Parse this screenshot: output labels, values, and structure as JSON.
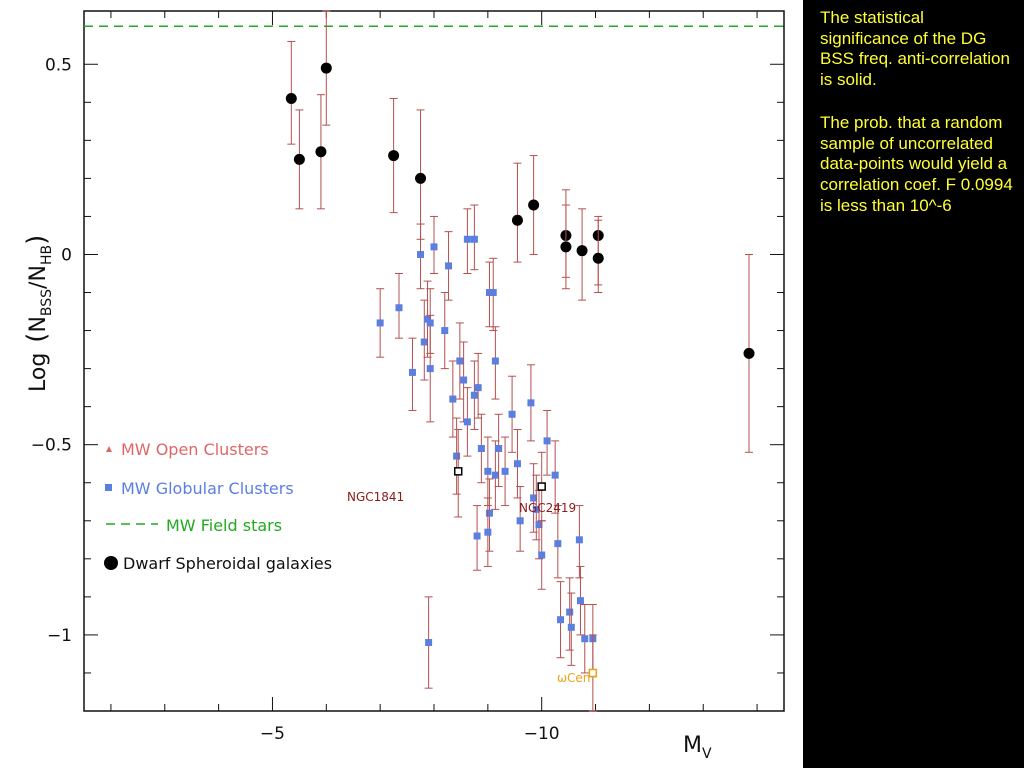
{
  "chart_data": {
    "type": "scatter",
    "title": "",
    "xlabel": "M",
    "xlabel_sub": "V",
    "ylabel": {
      "prefix": "Log",
      "num": "N",
      "num_sub": "BSS",
      "den": "N",
      "den_sub": "HB"
    },
    "xlim": [
      -1.5,
      -14.5
    ],
    "ylim": [
      -1.2,
      0.64
    ],
    "x_ticks": [
      {
        "value": -5,
        "label": "−5"
      },
      {
        "value": -10,
        "label": "−10"
      }
    ],
    "y_ticks": [
      {
        "value": 0.5,
        "label": "0.5"
      },
      {
        "value": 0,
        "label": "0"
      },
      {
        "value": -0.5,
        "label": "−0.5"
      },
      {
        "value": -1,
        "label": "−1"
      }
    ],
    "legend_position": "left-bottom",
    "legend": [
      {
        "label": "MW Open Clusters",
        "color": "#e06666",
        "marker": "triangle"
      },
      {
        "label": "MW Globular Clusters",
        "color": "#5b7fe0",
        "marker": "square"
      },
      {
        "label": "MW Field stars",
        "color": "#22aa22",
        "marker": "dashed-line"
      },
      {
        "label": "Dwarf Spheroidal galaxies",
        "color": "#000000",
        "marker": "circle"
      }
    ],
    "field_stars_level": 0.6,
    "colors": {
      "errorbar": "#b55050",
      "globular": "#5b7fe0",
      "dwarf": "#000000",
      "field": "#22aa22",
      "omega": "#e8a317",
      "named": "#8b1a1a"
    },
    "series": [
      {
        "name": "Dwarf Spheroidal galaxies",
        "marker": "circle",
        "points": [
          {
            "x": -6.0,
            "y": 0.49,
            "lo": 0.34,
            "hi": 0.64
          },
          {
            "x": -5.35,
            "y": 0.41,
            "lo": 0.29,
            "hi": 0.56
          },
          {
            "x": -5.5,
            "y": 0.25,
            "lo": 0.12,
            "hi": 0.38
          },
          {
            "x": -5.9,
            "y": 0.27,
            "lo": 0.12,
            "hi": 0.42
          },
          {
            "x": -7.25,
            "y": 0.26,
            "lo": 0.11,
            "hi": 0.41
          },
          {
            "x": -7.75,
            "y": 0.2,
            "lo": 0.04,
            "hi": 0.38
          },
          {
            "x": -9.55,
            "y": 0.09,
            "lo": -0.02,
            "hi": 0.24
          },
          {
            "x": -9.85,
            "y": 0.13,
            "lo": 0.0,
            "hi": 0.26
          },
          {
            "x": -10.45,
            "y": 0.05,
            "lo": -0.06,
            "hi": 0.17
          },
          {
            "x": -10.45,
            "y": 0.02,
            "lo": -0.09,
            "hi": 0.13
          },
          {
            "x": -10.75,
            "y": 0.01,
            "lo": -0.12,
            "hi": 0.12
          },
          {
            "x": -11.05,
            "y": 0.05,
            "lo": -0.08,
            "hi": 0.1
          },
          {
            "x": -11.05,
            "y": -0.01,
            "lo": -0.1,
            "hi": 0.09
          },
          {
            "x": -13.85,
            "y": -0.26,
            "lo": -0.52,
            "hi": 0.0
          }
        ]
      },
      {
        "name": "MW Globular Clusters",
        "marker": "square",
        "points": [
          {
            "x": -7.0,
            "y": -0.18,
            "lo": -0.27,
            "hi": -0.09
          },
          {
            "x": -7.35,
            "y": -0.14,
            "lo": -0.22,
            "hi": -0.05
          },
          {
            "x": -7.6,
            "y": -0.31,
            "lo": -0.41,
            "hi": -0.22
          },
          {
            "x": -7.75,
            "y": 0.0,
            "lo": -0.09,
            "hi": 0.08
          },
          {
            "x": -7.82,
            "y": -0.23,
            "lo": -0.33,
            "hi": -0.12
          },
          {
            "x": -7.88,
            "y": -0.17,
            "lo": -0.27,
            "hi": -0.07
          },
          {
            "x": -7.93,
            "y": -0.3,
            "lo": -0.44,
            "hi": -0.16
          },
          {
            "x": -7.93,
            "y": -0.18,
            "lo": -0.26,
            "hi": -0.09
          },
          {
            "x": -8.0,
            "y": 0.02,
            "lo": -0.05,
            "hi": 0.1
          },
          {
            "x": -8.2,
            "y": -0.2,
            "lo": -0.3,
            "hi": -0.1
          },
          {
            "x": -8.27,
            "y": -0.03,
            "lo": -0.12,
            "hi": 0.06
          },
          {
            "x": -8.35,
            "y": -0.38,
            "lo": -0.48,
            "hi": -0.28
          },
          {
            "x": -8.42,
            "y": -0.53,
            "lo": -0.63,
            "hi": -0.43
          },
          {
            "x": -8.48,
            "y": -0.28,
            "lo": -0.38,
            "hi": -0.18
          },
          {
            "x": -8.55,
            "y": -0.33,
            "lo": -0.44,
            "hi": -0.23
          },
          {
            "x": -8.62,
            "y": 0.04,
            "lo": -0.05,
            "hi": 0.12
          },
          {
            "x": -8.62,
            "y": -0.44,
            "lo": -0.53,
            "hi": -0.35
          },
          {
            "x": -8.75,
            "y": 0.04,
            "lo": -0.04,
            "hi": 0.13
          },
          {
            "x": -8.75,
            "y": -0.37,
            "lo": -0.46,
            "hi": -0.28
          },
          {
            "x": -8.8,
            "y": -0.74,
            "lo": -0.83,
            "hi": -0.66
          },
          {
            "x": -8.82,
            "y": -0.35,
            "lo": -0.43,
            "hi": -0.26
          },
          {
            "x": -8.88,
            "y": -0.51,
            "lo": -0.6,
            "hi": -0.42
          },
          {
            "x": -9.0,
            "y": -0.57,
            "lo": -0.66,
            "hi": -0.48
          },
          {
            "x": -9.03,
            "y": -0.1,
            "lo": -0.19,
            "hi": -0.02
          },
          {
            "x": -9.03,
            "y": -0.68,
            "lo": -0.78,
            "hi": -0.59
          },
          {
            "x": -9.1,
            "y": -0.1,
            "lo": -0.2,
            "hi": -0.01
          },
          {
            "x": -9.14,
            "y": -0.28,
            "lo": -0.38,
            "hi": -0.19
          },
          {
            "x": -9.14,
            "y": -0.58,
            "lo": -0.67,
            "hi": -0.49
          },
          {
            "x": -9.2,
            "y": -0.51,
            "lo": -0.61,
            "hi": -0.42
          },
          {
            "x": -9.32,
            "y": -0.57,
            "lo": -0.66,
            "hi": -0.48
          },
          {
            "x": -9.0,
            "y": -0.73,
            "lo": -0.82,
            "hi": -0.64
          },
          {
            "x": -9.45,
            "y": -0.42,
            "lo": -0.52,
            "hi": -0.32
          },
          {
            "x": -9.55,
            "y": -0.55,
            "lo": -0.64,
            "hi": -0.46
          },
          {
            "x": -9.6,
            "y": -0.7,
            "lo": -0.78,
            "hi": -0.61
          },
          {
            "x": -9.8,
            "y": -0.39,
            "lo": -0.49,
            "hi": -0.29
          },
          {
            "x": -9.85,
            "y": -0.64,
            "lo": -0.73,
            "hi": -0.55
          },
          {
            "x": -9.9,
            "y": -0.67,
            "lo": -0.75,
            "hi": -0.58
          },
          {
            "x": -9.95,
            "y": -0.71,
            "lo": -0.8,
            "hi": -0.62
          },
          {
            "x": -10.0,
            "y": -0.79,
            "lo": -0.88,
            "hi": -0.7
          },
          {
            "x": -10.1,
            "y": -0.49,
            "lo": -0.58,
            "hi": -0.41
          },
          {
            "x": -10.25,
            "y": -0.58,
            "lo": -0.68,
            "hi": -0.49
          },
          {
            "x": -10.3,
            "y": -0.76,
            "lo": -0.85,
            "hi": -0.66
          },
          {
            "x": -10.35,
            "y": -0.96,
            "lo": -1.06,
            "hi": -0.86
          },
          {
            "x": -10.52,
            "y": -0.94,
            "lo": -1.04,
            "hi": -0.85
          },
          {
            "x": -10.55,
            "y": -0.98,
            "lo": -1.08,
            "hi": -0.89
          },
          {
            "x": -10.7,
            "y": -0.75,
            "lo": -0.85,
            "hi": -0.66
          },
          {
            "x": -10.72,
            "y": -0.91,
            "lo": -1.0,
            "hi": -0.82
          },
          {
            "x": -10.8,
            "y": -1.01,
            "lo": -1.1,
            "hi": -0.92
          },
          {
            "x": -10.95,
            "y": -1.01,
            "lo": -1.11,
            "hi": -0.92
          },
          {
            "x": -7.9,
            "y": -1.02,
            "lo": -1.14,
            "hi": -0.9
          }
        ]
      },
      {
        "name": "NGC1841",
        "marker": "open-square",
        "points": [
          {
            "x": -8.45,
            "y": -0.57,
            "lo": -0.69,
            "hi": -0.46
          }
        ]
      },
      {
        "name": "NGC2419",
        "marker": "open-square",
        "points": [
          {
            "x": -10.0,
            "y": -0.61,
            "lo": -0.7,
            "hi": -0.52
          }
        ]
      },
      {
        "name": "ωCen",
        "marker": "open-square",
        "points": [
          {
            "x": -10.95,
            "y": -1.1,
            "lo": -1.2,
            "hi": -1.0
          }
        ]
      }
    ],
    "annotations": [
      {
        "text": "NGC1841",
        "series": "NGC1841"
      },
      {
        "text": "NGC2419",
        "series": "NGC2419"
      },
      {
        "text": "ωCen",
        "series": "ωCen"
      }
    ]
  },
  "side_text": {
    "para1": "The statistical significance of the DG BSS freq. anti-correlation is solid.",
    "para2": "The prob. that a random sample of uncorrelated data-points would yield a correlation coef. F 0.0994 is less than 10^-6"
  }
}
